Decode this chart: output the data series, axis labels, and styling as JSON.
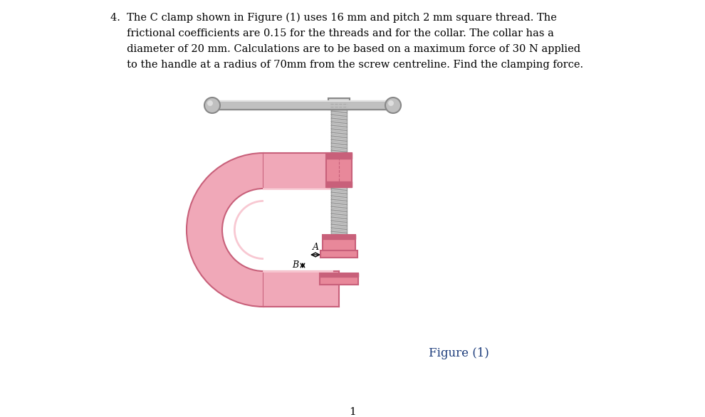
{
  "background_color": "#ffffff",
  "clamp_pink": "#f0a8b8",
  "clamp_pink_dark": "#c8607a",
  "clamp_pink_mid": "#e8889a",
  "clamp_pink_light": "#f8c8d2",
  "screw_gray_light": "#d0d0d0",
  "screw_gray": "#b0b0b0",
  "screw_gray_dark": "#888888",
  "handle_gray_light": "#c8c8c8",
  "handle_gray": "#b0b0b0",
  "handle_gray_dark": "#909090",
  "ball_light": "#c8c8c8",
  "ball_dark": "#989898",
  "annotation_color": "#000000",
  "figure_caption_color": "#1a3a7a",
  "figure_label": "Figure (1)",
  "page_number": "1",
  "text_line1": "4.  The C clamp shown in Figure (1) uses 16 mm and pitch 2 mm square thread. The",
  "text_line2": "     frictional coefficients are 0.15 for the threads and for the collar. The collar has a",
  "text_line3": "     diameter of 20 mm. Calculations are to be based on a maximum force of 30 N applied",
  "text_line4": "     to the handle at a radius of 70mm from the screw centreline. Find the clamping force."
}
